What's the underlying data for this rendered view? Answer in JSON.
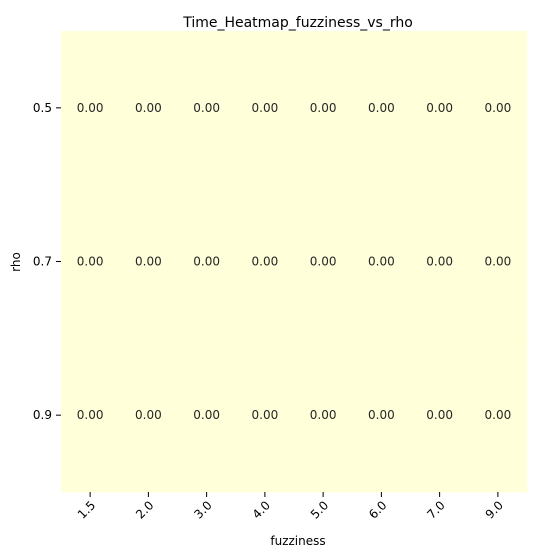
{
  "chart_data": {
    "type": "heatmap",
    "title": "Time_Heatmap_fuzziness_vs_rho",
    "xlabel": "fuzziness",
    "ylabel": "rho",
    "x_categories": [
      "1.5",
      "2.0",
      "3.0",
      "4.0",
      "5.0",
      "6.0",
      "7.0",
      "9.0"
    ],
    "y_categories": [
      "0.5",
      "0.7",
      "0.9"
    ],
    "values": [
      [
        0.0,
        0.0,
        0.0,
        0.0,
        0.0,
        0.0,
        0.0,
        0.0
      ],
      [
        0.0,
        0.0,
        0.0,
        0.0,
        0.0,
        0.0,
        0.0,
        0.0
      ],
      [
        0.0,
        0.0,
        0.0,
        0.0,
        0.0,
        0.0,
        0.0,
        0.0
      ]
    ],
    "value_format": "0.00",
    "cell_color": "#ffffd9",
    "grid": false,
    "colorbar": false,
    "x_tick_rotation": "45"
  }
}
